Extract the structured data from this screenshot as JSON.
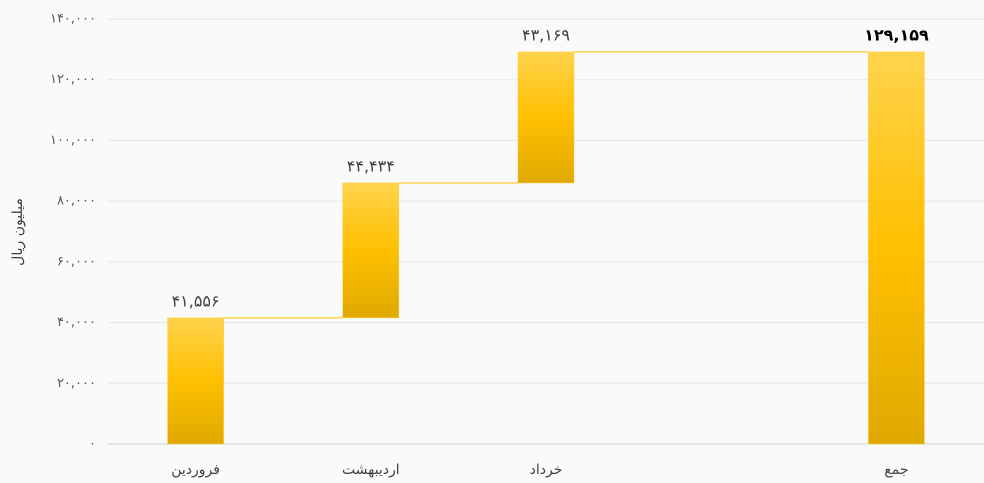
{
  "chart_data": {
    "type": "waterfall",
    "y_label": "میلیون ریال",
    "categories": [
      "فروردین",
      "اردیبهشت",
      "خرداد",
      null,
      "جمع"
    ],
    "values": [
      41556,
      44434,
      43169,
      null,
      129159
    ],
    "value_labels": [
      "۴۱,۵۵۶",
      "۴۴,۴۳۴",
      "۴۳,۱۶۹",
      null,
      "۱۲۹,۱۵۹"
    ],
    "color": "#ffc000",
    "ylim": [
      0,
      140000
    ],
    "yticks": [
      {
        "value": 0,
        "label": "۰"
      },
      {
        "value": 20000,
        "label": "۲۰,۰۰۰"
      },
      {
        "value": 40000,
        "label": "۴۰,۰۰۰"
      },
      {
        "value": 60000,
        "label": "۶۰,۰۰۰"
      },
      {
        "value": 80000,
        "label": "۸۰,۰۰۰"
      },
      {
        "value": 100000,
        "label": "۱۰۰,۰۰۰"
      },
      {
        "value": 120000,
        "label": "۱۲۰,۰۰۰"
      },
      {
        "value": 140000,
        "label": "۱۴۰,۰۰۰"
      }
    ],
    "grid": true
  }
}
